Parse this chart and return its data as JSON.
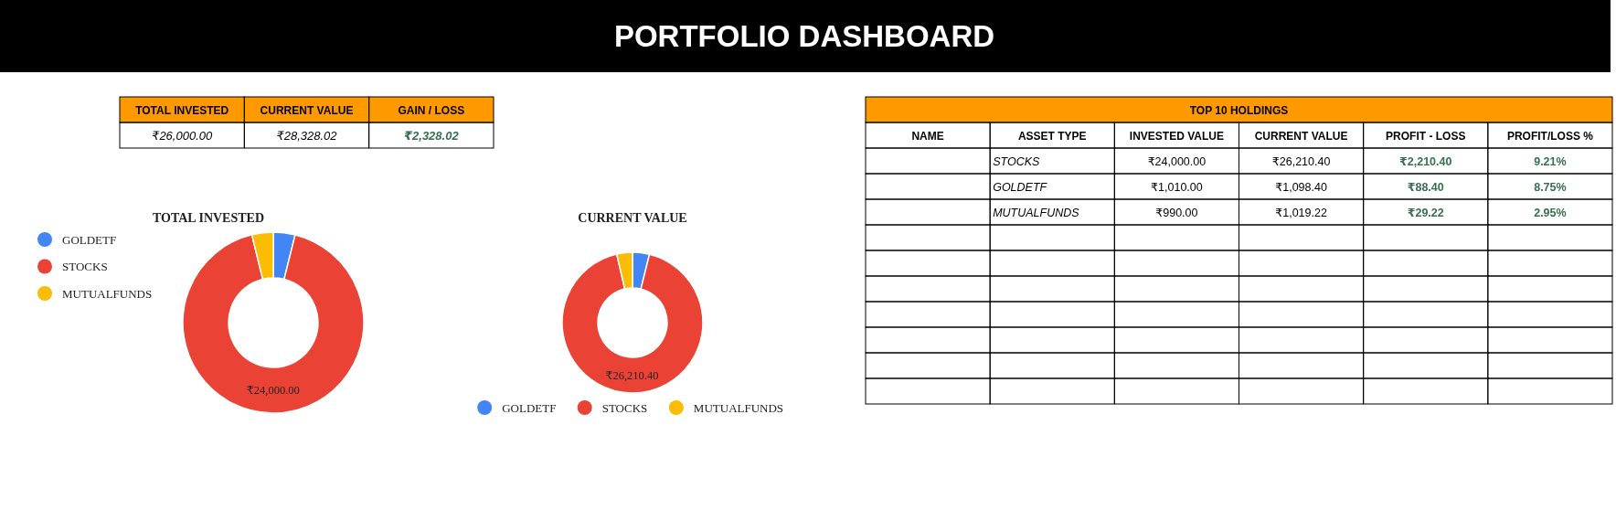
{
  "chart_data": [
    {
      "type": "other",
      "title": "PORTFOLIO DASHBOARD"
    },
    {
      "type": "other",
      "categories": [
        "TOTAL INVESTED",
        "CURRENT VALUE",
        "GAIN / LOSS"
      ],
      "values": [
        26000,
        28328.02,
        2328.02
      ],
      "value_labels": [
        "₹26,000.00",
        "₹28,328.02",
        "₹2,328.02"
      ],
      "color": "#ff9900",
      "colors": [
        "#000000",
        "#000000",
        "#38704f"
      ]
    },
    {
      "type": "donut",
      "title": "TOTAL INVESTED",
      "categories": [
        "GOLDETF",
        "STOCKS",
        "MUTUALFUNDS"
      ],
      "values": [
        1010,
        24000,
        990
      ],
      "colors": [
        "#4285f4",
        "#ea4335",
        "#fbbc04"
      ],
      "value_labels": [
        null,
        "₹24,000.00",
        null
      ],
      "legend": "left"
    },
    {
      "type": "donut",
      "title": "CURRENT VALUE",
      "categories": [
        "GOLDETF",
        "STOCKS",
        "MUTUALFUNDS"
      ],
      "values": [
        1098.4,
        26210.4,
        1019.22
      ],
      "colors": [
        "#4285f4",
        "#ea4335",
        "#fbbc04"
      ],
      "value_labels": [
        null,
        "₹26,210.40",
        null
      ],
      "legend": "bottom"
    },
    {
      "type": "other",
      "title": "TOP 10 HOLDINGS",
      "color": "#ff9900",
      "categories": [
        "NAME",
        "ASSET TYPE",
        "INVESTED VALUE",
        "CURRENT VALUE",
        "PROFIT - LOSS",
        "PROFIT/LOSS %"
      ],
      "colors": [
        "#000000",
        "#000000",
        "#000000",
        "#000000",
        "#38704f",
        "#38704f"
      ],
      "cell_labels": [
        [
          null,
          "STOCKS",
          "₹24,000.00",
          "₹26,210.40",
          "₹2,210.40",
          "9.21%"
        ],
        [
          null,
          "GOLDETF",
          "₹1,010.00",
          "₹1,098.40",
          "₹88.40",
          "8.75%"
        ],
        [
          null,
          "MUTUALFUNDS",
          "₹990.00",
          "₹1,019.22",
          "₹29.22",
          "2.95%"
        ],
        [
          null,
          null,
          null,
          null,
          null,
          null
        ],
        [
          null,
          null,
          null,
          null,
          null,
          null
        ],
        [
          null,
          null,
          null,
          null,
          null,
          null
        ],
        [
          null,
          null,
          null,
          null,
          null,
          null
        ],
        [
          null,
          null,
          null,
          null,
          null,
          null
        ],
        [
          null,
          null,
          null,
          null,
          null,
          null
        ],
        [
          null,
          null,
          null,
          null,
          null,
          null
        ]
      ]
    }
  ]
}
